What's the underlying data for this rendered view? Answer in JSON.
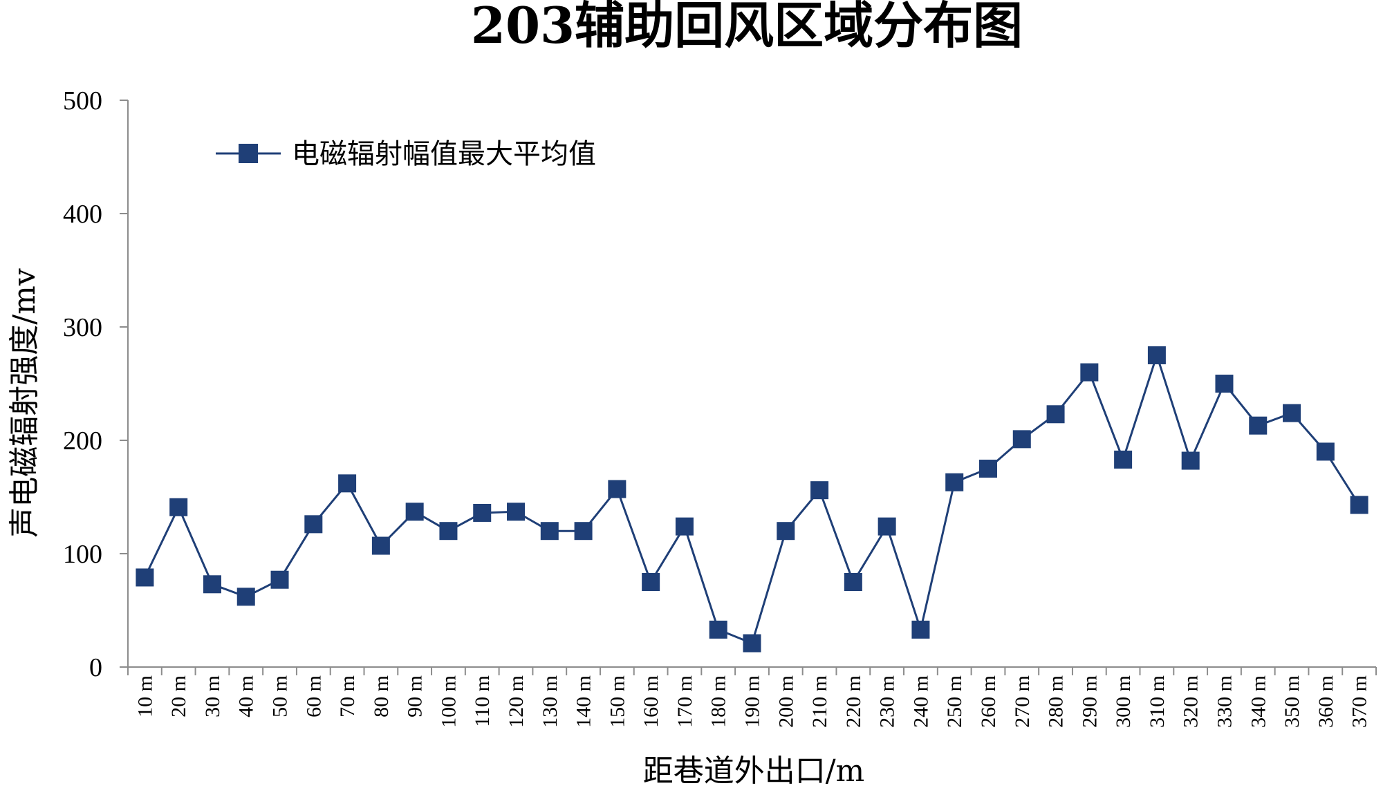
{
  "chart_data": {
    "type": "line",
    "title": "203辅助回风区域分布图",
    "xlabel": "距巷道外出口/m",
    "ylabel": "声电磁辐射强度/mv",
    "ylim": [
      0,
      500
    ],
    "yticks": [
      0,
      100,
      200,
      300,
      400,
      500
    ],
    "grid": false,
    "legend_position": "top-left",
    "categories": [
      "10 m",
      "20 m",
      "30 m",
      "40 m",
      "50 m",
      "60 m",
      "70 m",
      "80 m",
      "90 m",
      "100 m",
      "110 m",
      "120 m",
      "130 m",
      "140 m",
      "150 m",
      "160 m",
      "170 m",
      "180 m",
      "190 m",
      "200 m",
      "210 m",
      "220 m",
      "230 m",
      "240 m",
      "250 m",
      "260 m",
      "270 m",
      "280 m",
      "290 m",
      "300 m",
      "310 m",
      "320 m",
      "330 m",
      "340 m",
      "350 m",
      "360 m",
      "370 m"
    ],
    "series": [
      {
        "name": "电磁辐射幅值最大平均值",
        "color": "#1f3f77",
        "marker": "square",
        "values": [
          79,
          141,
          73,
          62,
          77,
          126,
          162,
          107,
          137,
          120,
          136,
          137,
          120,
          120,
          157,
          75,
          124,
          33,
          21,
          120,
          156,
          75,
          124,
          33,
          163,
          175,
          201,
          223,
          260,
          183,
          275,
          182,
          250,
          213,
          224,
          190,
          143
        ]
      }
    ]
  }
}
